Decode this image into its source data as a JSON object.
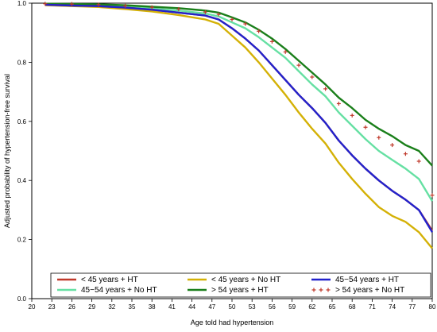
{
  "chart_data": {
    "type": "line",
    "xlabel": "Age told had hypertension",
    "ylabel": "Adjusted probability of hypertension-free survival",
    "xlim": [
      20,
      80
    ],
    "ylim": [
      0.0,
      1.0
    ],
    "x_ticks": [
      20,
      23,
      26,
      29,
      32,
      35,
      38,
      41,
      44,
      47,
      50,
      53,
      56,
      59,
      62,
      65,
      68,
      71,
      74,
      77,
      80
    ],
    "y_ticks": [
      0.0,
      0.2,
      0.4,
      0.6,
      0.8,
      1.0
    ],
    "y_tick_labels": [
      "0.0",
      "0.2",
      "0.4",
      "0.6",
      "0.8",
      "1.0"
    ],
    "grid": false,
    "legend_position": "bottom",
    "x": [
      22,
      26,
      30,
      34,
      38,
      42,
      46,
      48,
      50,
      52,
      54,
      56,
      58,
      60,
      62,
      64,
      66,
      68,
      70,
      72,
      74,
      76,
      78,
      80
    ],
    "series": [
      {
        "name": "< 45 years + HT",
        "color": "#c0392b",
        "style": "line",
        "values": [
          0.995,
          0.992,
          0.99,
          0.985,
          0.978,
          0.968,
          0.958,
          0.945,
          0.915,
          0.88,
          0.84,
          0.79,
          0.74,
          0.69,
          0.645,
          0.595,
          0.535,
          0.485,
          0.44,
          0.4,
          0.365,
          0.335,
          0.3,
          0.23
        ]
      },
      {
        "name": "45−54 years + No HT",
        "color": "#66e0a3",
        "style": "line",
        "values": [
          0.997,
          0.995,
          0.992,
          0.988,
          0.982,
          0.975,
          0.965,
          0.955,
          0.935,
          0.915,
          0.885,
          0.85,
          0.815,
          0.77,
          0.725,
          0.685,
          0.63,
          0.585,
          0.54,
          0.5,
          0.47,
          0.44,
          0.405,
          0.33
        ]
      },
      {
        "name": "< 45 years + No HT",
        "color": "#d4b106",
        "style": "line",
        "values": [
          0.993,
          0.99,
          0.987,
          0.98,
          0.972,
          0.96,
          0.945,
          0.93,
          0.89,
          0.85,
          0.8,
          0.745,
          0.69,
          0.63,
          0.575,
          0.525,
          0.46,
          0.405,
          0.355,
          0.31,
          0.28,
          0.26,
          0.225,
          0.17
        ]
      },
      {
        "name": "> 54 years + HT",
        "color": "#1a7f1a",
        "style": "line",
        "values": [
          0.998,
          0.997,
          0.996,
          0.993,
          0.988,
          0.983,
          0.975,
          0.968,
          0.952,
          0.935,
          0.91,
          0.88,
          0.845,
          0.805,
          0.765,
          0.725,
          0.68,
          0.645,
          0.605,
          0.575,
          0.55,
          0.52,
          0.5,
          0.45
        ]
      },
      {
        "name": "45−54 years + HT",
        "color": "#2222cc",
        "style": "line",
        "values": [
          0.995,
          0.992,
          0.99,
          0.985,
          0.978,
          0.968,
          0.958,
          0.945,
          0.915,
          0.88,
          0.84,
          0.79,
          0.74,
          0.69,
          0.645,
          0.595,
          0.535,
          0.485,
          0.44,
          0.4,
          0.365,
          0.335,
          0.3,
          0.225
        ]
      },
      {
        "name": "> 54 years + No HT",
        "color": "#c0392b",
        "style": "markers",
        "values": [
          0.998,
          0.997,
          0.995,
          0.991,
          0.986,
          0.98,
          0.97,
          0.962,
          0.945,
          0.93,
          0.905,
          0.87,
          0.835,
          0.79,
          0.75,
          0.71,
          0.66,
          0.62,
          0.58,
          0.545,
          0.52,
          0.49,
          0.465,
          0.35
        ]
      }
    ],
    "legend": [
      {
        "series": 0,
        "label": "< 45 years + HT"
      },
      {
        "series": 2,
        "label": "< 45 years + No HT"
      },
      {
        "series": 4,
        "label": "45−54 years + HT"
      },
      {
        "series": 1,
        "label": "45−54 years + No HT"
      },
      {
        "series": 3,
        "label": "> 54 years + HT"
      },
      {
        "series": 5,
        "label": "> 54 years + No HT"
      }
    ]
  }
}
